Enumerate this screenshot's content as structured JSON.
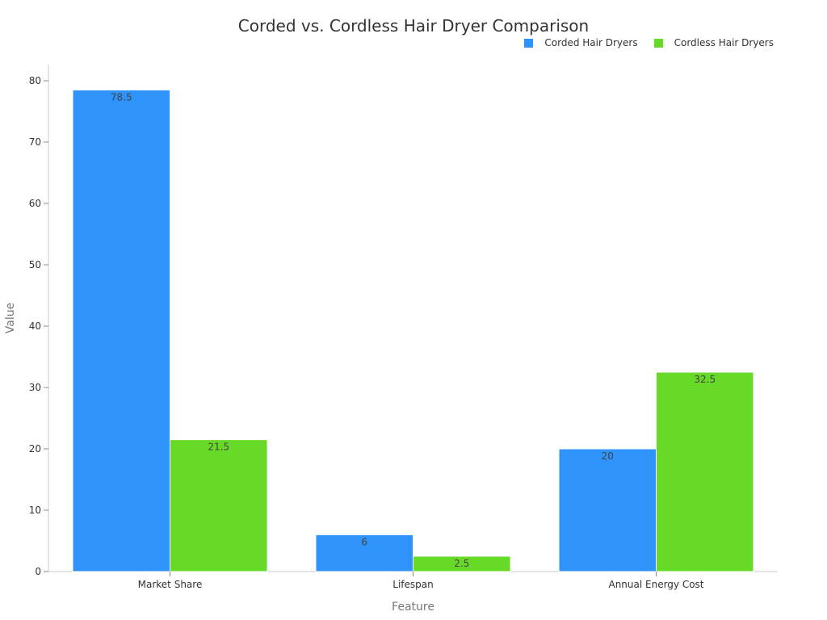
{
  "chart_data": {
    "type": "bar",
    "title": "Corded vs. Cordless Hair Dryer Comparison",
    "xlabel": "Feature",
    "ylabel": "Value",
    "categories": [
      "Market Share",
      "Lifespan",
      "Annual Energy Cost"
    ],
    "series": [
      {
        "name": "Corded Hair Dryers",
        "color": "#2E93FA",
        "values": [
          78.5,
          6,
          20
        ]
      },
      {
        "name": "Cordless Hair Dryers",
        "color": "#66DA26",
        "values": [
          21.5,
          2.5,
          32.5
        ]
      }
    ],
    "ylim": [
      0,
      82
    ],
    "yticks": [
      0,
      10,
      20,
      30,
      40,
      50,
      60,
      70,
      80
    ],
    "grid": false,
    "legend_position": "top-right",
    "data_labels": true
  }
}
